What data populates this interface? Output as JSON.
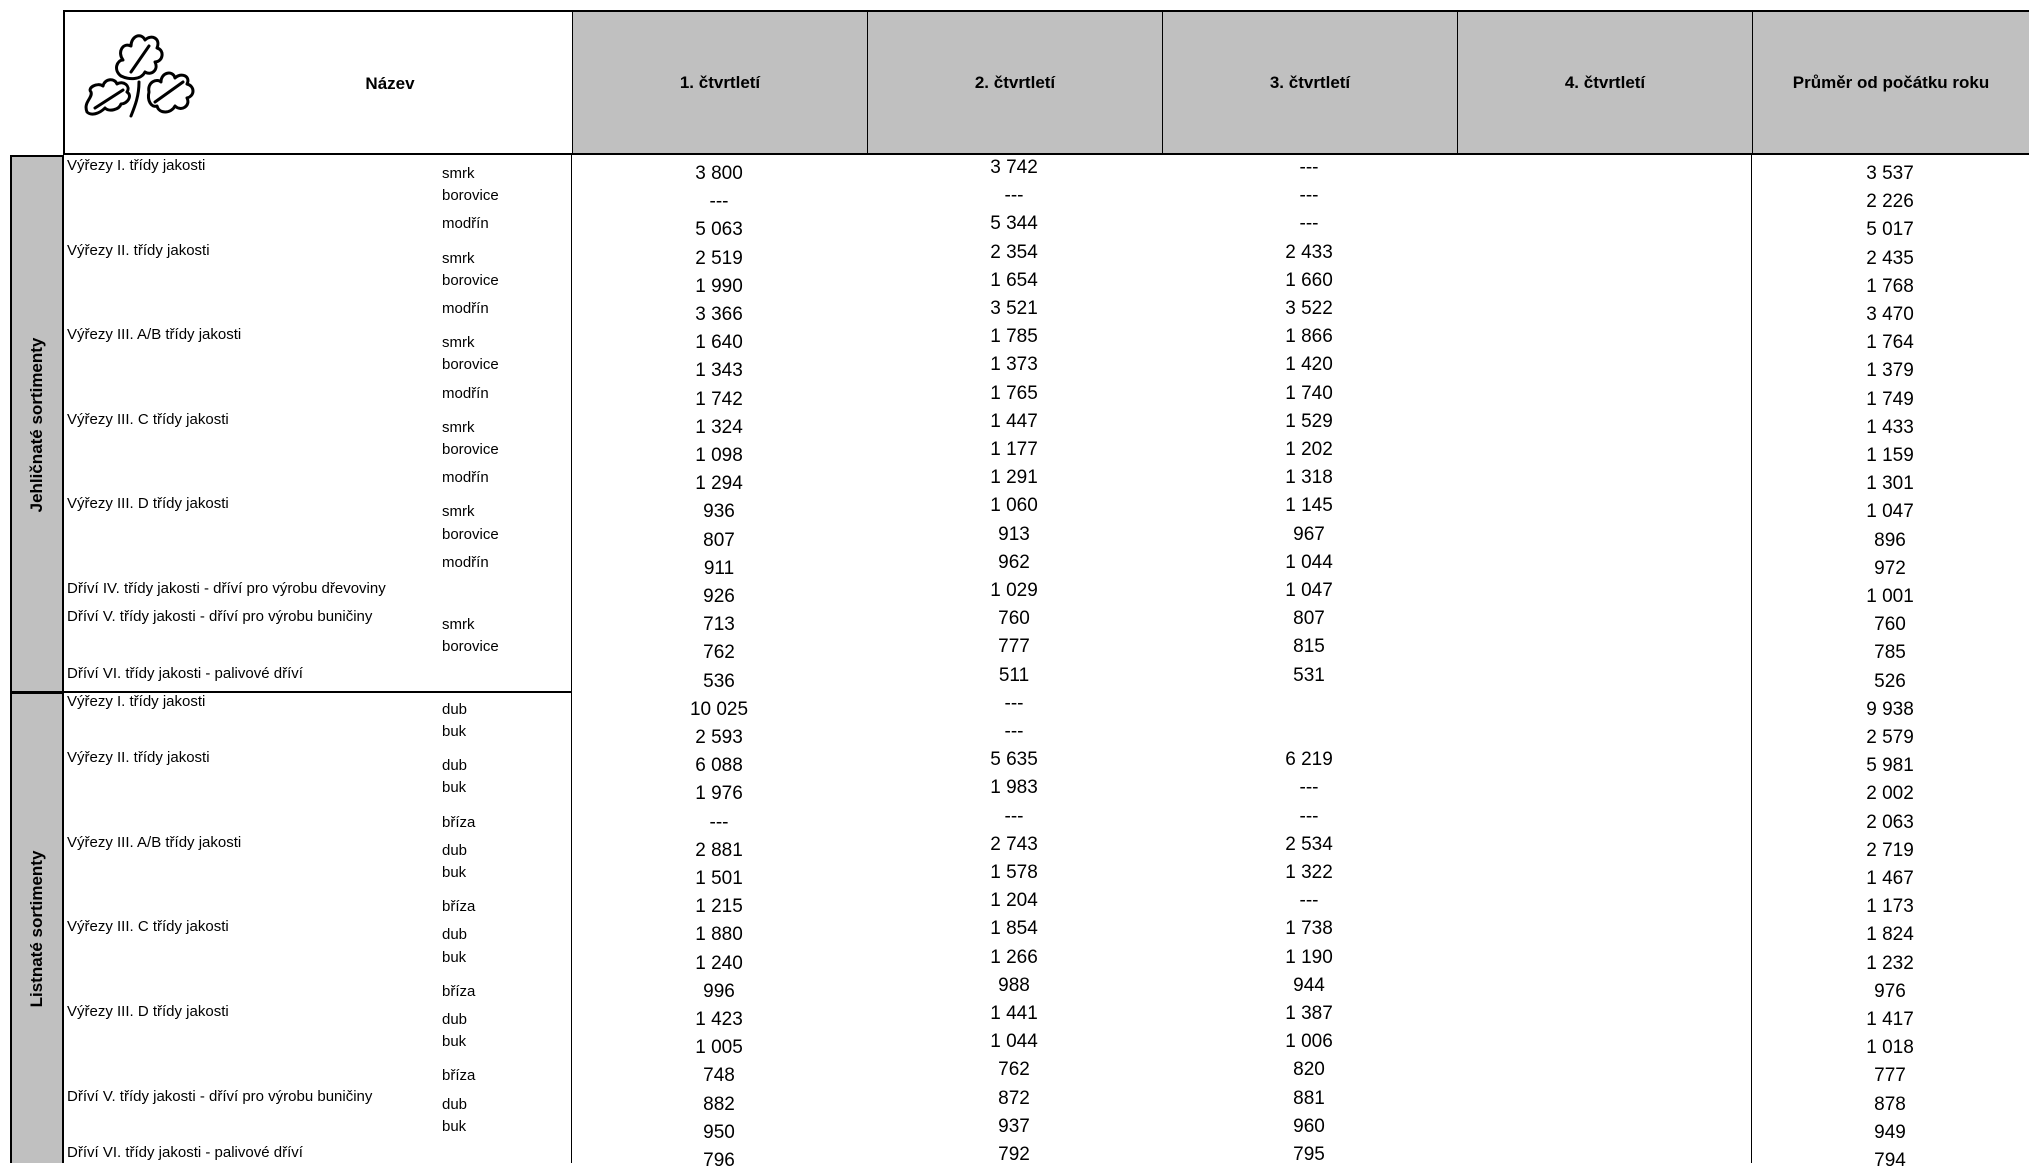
{
  "header": {
    "name_col": "Název",
    "logo_icon": "oak-leaves-icon",
    "quarters": [
      "1. čtvrtletí",
      "2. čtvrtletí",
      "3. čtvrtletí",
      "4. čtvrtletí"
    ],
    "average_col": "Průměr od počátku roku"
  },
  "groups": [
    {
      "label": "Jehličnaté sortimenty",
      "rows": [
        {
          "name": "Výřezy I. třídy jakosti",
          "species": "smrk",
          "q1": "3 800",
          "q2": "3 742",
          "q3": "---",
          "q4": "",
          "avg": "3 537"
        },
        {
          "name": "",
          "species": "borovice",
          "q1": "---",
          "q2": "---",
          "q3": "---",
          "q4": "",
          "avg": "2 226"
        },
        {
          "name": "",
          "species": "modřín",
          "q1": "5 063",
          "q2": "5 344",
          "q3": "---",
          "q4": "",
          "avg": "5 017"
        },
        {
          "name": "Výřezy II. třídy jakosti",
          "species": "smrk",
          "q1": "2 519",
          "q2": "2 354",
          "q3": "2 433",
          "q4": "",
          "avg": "2 435"
        },
        {
          "name": "",
          "species": "borovice",
          "q1": "1 990",
          "q2": "1 654",
          "q3": "1 660",
          "q4": "",
          "avg": "1 768"
        },
        {
          "name": "",
          "species": "modřín",
          "q1": "3 366",
          "q2": "3 521",
          "q3": "3 522",
          "q4": "",
          "avg": "3 470"
        },
        {
          "name": "Výřezy III. A/B třídy jakosti",
          "species": "smrk",
          "q1": "1 640",
          "q2": "1 785",
          "q3": "1 866",
          "q4": "",
          "avg": "1 764"
        },
        {
          "name": "",
          "species": "borovice",
          "q1": "1 343",
          "q2": "1 373",
          "q3": "1 420",
          "q4": "",
          "avg": "1 379"
        },
        {
          "name": "",
          "species": "modřín",
          "q1": "1 742",
          "q2": "1 765",
          "q3": "1 740",
          "q4": "",
          "avg": "1 749"
        },
        {
          "name": "Výřezy III. C třídy jakosti",
          "species": "smrk",
          "q1": "1 324",
          "q2": "1 447",
          "q3": "1 529",
          "q4": "",
          "avg": "1 433"
        },
        {
          "name": "",
          "species": "borovice",
          "q1": "1 098",
          "q2": "1 177",
          "q3": "1 202",
          "q4": "",
          "avg": "1 159"
        },
        {
          "name": "",
          "species": "modřín",
          "q1": "1 294",
          "q2": "1 291",
          "q3": "1 318",
          "q4": "",
          "avg": "1 301"
        },
        {
          "name": "Výřezy III. D třídy jakosti",
          "species": "smrk",
          "q1": "936",
          "q2": "1 060",
          "q3": "1 145",
          "q4": "",
          "avg": "1 047"
        },
        {
          "name": "",
          "species": "borovice",
          "q1": "807",
          "q2": "913",
          "q3": "967",
          "q4": "",
          "avg": "896"
        },
        {
          "name": "",
          "species": "modřín",
          "q1": "911",
          "q2": "962",
          "q3": "1 044",
          "q4": "",
          "avg": "972"
        },
        {
          "name": "Dříví IV. třídy jakosti - dříví pro výrobu dřevoviny",
          "species": "",
          "q1": "926",
          "q2": "1 029",
          "q3": "1 047",
          "q4": "",
          "avg": "1 001"
        },
        {
          "name": "Dříví V. třídy jakosti - dříví pro výrobu buničiny",
          "species": "smrk",
          "q1": "713",
          "q2": "760",
          "q3": "807",
          "q4": "",
          "avg": "760"
        },
        {
          "name": "",
          "species": "borovice",
          "q1": "762",
          "q2": "777",
          "q3": "815",
          "q4": "",
          "avg": "785"
        },
        {
          "name": "Dříví VI. třídy jakosti - palivové dříví",
          "species": "",
          "q1": "536",
          "q2": "511",
          "q3": "531",
          "q4": "",
          "avg": "526"
        }
      ]
    },
    {
      "label": "Listnaté sortimenty",
      "rows": [
        {
          "name": "Výřezy I. třídy jakosti",
          "species": "dub",
          "q1": "10 025",
          "q2": "---",
          "q3": "",
          "q4": "",
          "avg": "9 938"
        },
        {
          "name": "",
          "species": "buk",
          "q1": "2 593",
          "q2": "---",
          "q3": "",
          "q4": "",
          "avg": "2 579"
        },
        {
          "name": "Výřezy II. třídy jakosti",
          "species": "dub",
          "q1": "6 088",
          "q2": "5 635",
          "q3": "6 219",
          "q4": "",
          "avg": "5 981"
        },
        {
          "name": "",
          "species": "buk",
          "q1": "1 976",
          "q2": "1 983",
          "q3": "---",
          "q4": "",
          "avg": "2 002"
        },
        {
          "name": "",
          "species": "bříza",
          "q1": "---",
          "q2": "---",
          "q3": "---",
          "q4": "",
          "avg": "2 063"
        },
        {
          "name": "Výřezy III. A/B třídy jakosti",
          "species": "dub",
          "q1": "2 881",
          "q2": "2 743",
          "q3": "2 534",
          "q4": "",
          "avg": "2 719"
        },
        {
          "name": "",
          "species": "buk",
          "q1": "1 501",
          "q2": "1 578",
          "q3": "1 322",
          "q4": "",
          "avg": "1 467"
        },
        {
          "name": "",
          "species": "bříza",
          "q1": "1 215",
          "q2": "1 204",
          "q3": "---",
          "q4": "",
          "avg": "1 173"
        },
        {
          "name": "Výřezy III. C třídy jakosti",
          "species": "dub",
          "q1": "1 880",
          "q2": "1 854",
          "q3": "1 738",
          "q4": "",
          "avg": "1 824"
        },
        {
          "name": "",
          "species": "buk",
          "q1": "1 240",
          "q2": "1 266",
          "q3": "1 190",
          "q4": "",
          "avg": "1 232"
        },
        {
          "name": "",
          "species": "bříza",
          "q1": "996",
          "q2": "988",
          "q3": "944",
          "q4": "",
          "avg": "976"
        },
        {
          "name": "Výřezy III. D třídy jakosti",
          "species": "dub",
          "q1": "1 423",
          "q2": "1 441",
          "q3": "1 387",
          "q4": "",
          "avg": "1 417"
        },
        {
          "name": "",
          "species": "buk",
          "q1": "1 005",
          "q2": "1 044",
          "q3": "1 006",
          "q4": "",
          "avg": "1 018"
        },
        {
          "name": "",
          "species": "bříza",
          "q1": "748",
          "q2": "762",
          "q3": "820",
          "q4": "",
          "avg": "777"
        },
        {
          "name": "Dříví V. třídy jakosti - dříví pro výrobu buničiny",
          "species": "dub",
          "q1": "882",
          "q2": "872",
          "q3": "881",
          "q4": "",
          "avg": "878"
        },
        {
          "name": "",
          "species": "buk",
          "q1": "950",
          "q2": "937",
          "q3": "960",
          "q4": "",
          "avg": "949"
        },
        {
          "name": "Dříví VI. třídy jakosti - palivové dříví",
          "species": "",
          "q1": "796",
          "q2": "792",
          "q3": "795",
          "q4": "",
          "avg": "794"
        }
      ]
    }
  ]
}
